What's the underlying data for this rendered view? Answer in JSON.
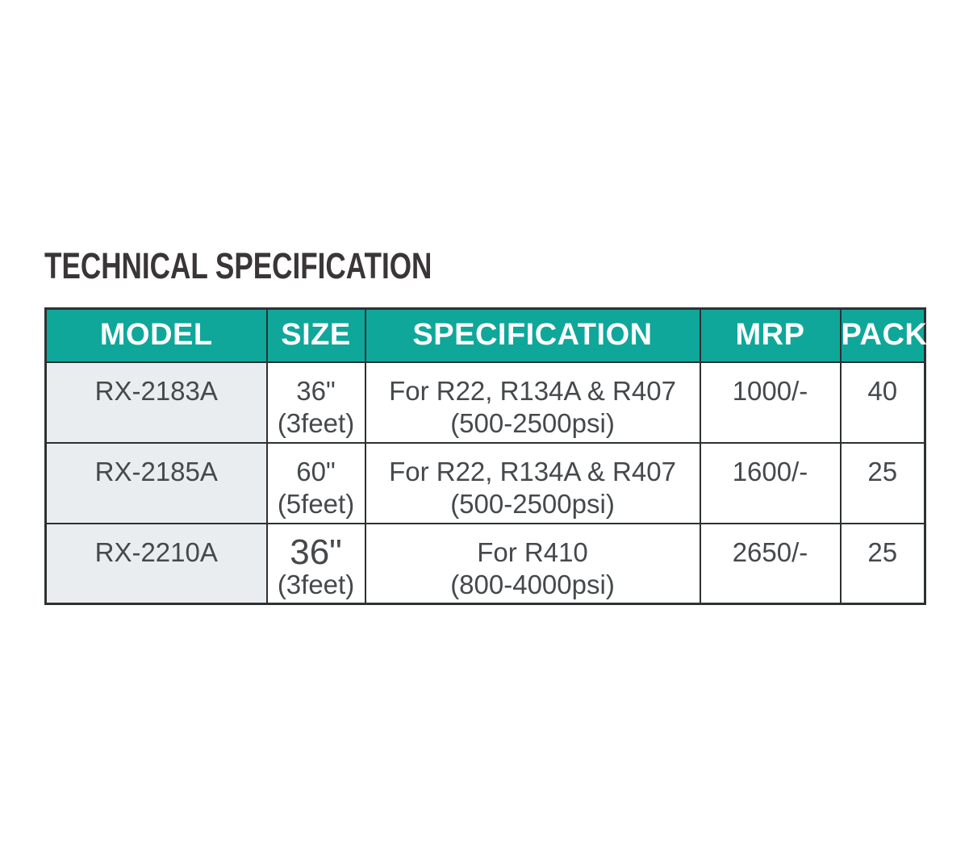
{
  "heading": {
    "title": "TECHNICAL SPECIFICATION"
  },
  "colors": {
    "page_bg": "#ffffff",
    "header_bg": "#0fa79a",
    "header_text": "#ffffff",
    "model_column_bg": "#e9edf0",
    "table_border": "#2e3132",
    "body_text": "#45494b",
    "heading_text": "#3a3536"
  },
  "table": {
    "columns": [
      {
        "label": "MODEL"
      },
      {
        "label": "SIZE"
      },
      {
        "label": "SPECIFICATION"
      },
      {
        "label": "MRP"
      },
      {
        "label": "PACK"
      }
    ],
    "rows": [
      {
        "model": "RX-2183A",
        "size": {
          "line1": "36\"",
          "line2": "(3feet)"
        },
        "specification": {
          "line1": "For R22, R134A & R407",
          "line2": "(500-2500psi)"
        },
        "mrp": "1000/-",
        "pack": "40"
      },
      {
        "model": "RX-2185A",
        "size": {
          "line1": "60\"",
          "line2": "(5feet)"
        },
        "specification": {
          "line1": "For R22, R134A & R407",
          "line2": "(500-2500psi)"
        },
        "mrp": "1600/-",
        "pack": "25"
      },
      {
        "model": "RX-2210A",
        "size": {
          "line1": "36\"",
          "line2": "(3feet)"
        },
        "specification": {
          "line1": "For R410",
          "line2": "(800-4000psi)"
        },
        "mrp": "2650/-",
        "pack": "25"
      }
    ]
  }
}
